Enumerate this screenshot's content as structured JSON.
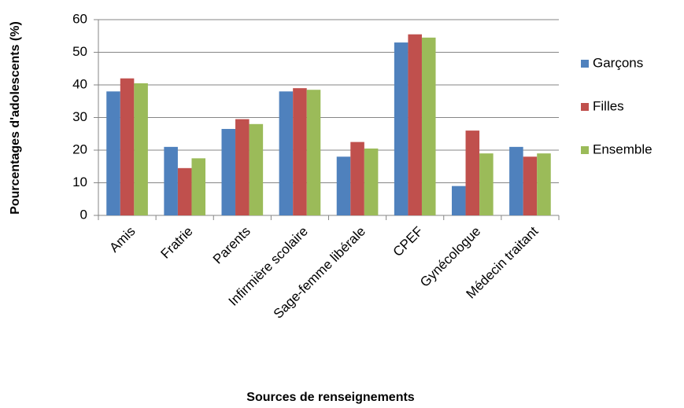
{
  "chart_data": {
    "type": "bar",
    "x_label": "Sources de renseignements",
    "y_label": "Pourcentages d'adolescents (%)",
    "categories": [
      "Amis",
      "Fratrie",
      "Parents",
      "Infirmière scolaire",
      "Sage-femme libérale",
      "CPEF",
      "Gynécologue",
      "Médecin traitant"
    ],
    "series": [
      {
        "name": "Garçons",
        "color": "#4f81bd",
        "values": [
          38,
          21,
          26.5,
          38,
          18,
          53,
          9,
          21
        ]
      },
      {
        "name": "Filles",
        "color": "#c0504d",
        "values": [
          42,
          14.5,
          29.5,
          39,
          22.5,
          55.5,
          26,
          18
        ]
      },
      {
        "name": "Ensemble",
        "color": "#9bbb59",
        "values": [
          40.5,
          17.5,
          28,
          38.5,
          20.5,
          54.5,
          19,
          19
        ]
      }
    ],
    "ylim": [
      0,
      60
    ],
    "yticks": [
      0,
      10,
      20,
      30,
      40,
      50,
      60
    ],
    "grid": true,
    "legend": "right"
  }
}
